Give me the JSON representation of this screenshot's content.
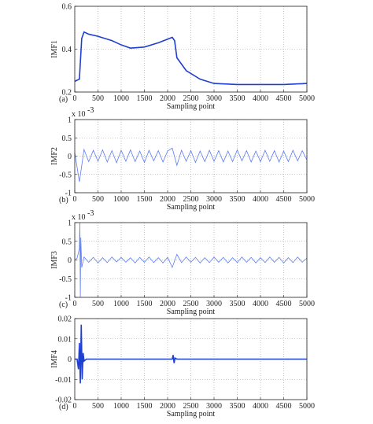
{
  "chart_data": [
    {
      "type": "line",
      "label": "(a)",
      "ylabel": "IMF1",
      "xlabel": "Sampling point",
      "color": "#1f3fd0",
      "grid": true,
      "x": [
        0,
        100,
        150,
        200,
        300,
        500,
        800,
        1000,
        1200,
        1500,
        1800,
        2100,
        2150,
        2200,
        2400,
        2700,
        3000,
        3500,
        4000,
        4500,
        5000
      ],
      "values": [
        0.25,
        0.26,
        0.45,
        0.48,
        0.47,
        0.46,
        0.44,
        0.42,
        0.405,
        0.41,
        0.43,
        0.455,
        0.44,
        0.36,
        0.3,
        0.26,
        0.24,
        0.235,
        0.235,
        0.235,
        0.24
      ],
      "xlim": [
        0,
        5000
      ],
      "xticks": [
        0,
        500,
        1000,
        1500,
        2000,
        2500,
        3000,
        3500,
        4000,
        4500,
        5000
      ],
      "ylim": [
        0.2,
        0.6
      ],
      "yticks": [
        0.2,
        0.4,
        0.6
      ]
    },
    {
      "type": "line",
      "label": "(b)",
      "ylabel": "IMF2",
      "xlabel": "Sampling point",
      "color": "#5b7cf5",
      "grid": true,
      "multiplier": {
        "base": "x 10",
        "exponent": "-3"
      },
      "x": [
        0,
        100,
        200,
        300,
        400,
        500,
        600,
        700,
        800,
        900,
        1000,
        1100,
        1200,
        1300,
        1400,
        1500,
        1600,
        1700,
        1800,
        1900,
        2000,
        2100,
        2200,
        2300,
        2400,
        2500,
        2600,
        2700,
        2800,
        2900,
        3000,
        3100,
        3200,
        3300,
        3400,
        3500,
        3600,
        3700,
        3800,
        3900,
        4000,
        4100,
        4200,
        4300,
        4400,
        4500,
        4600,
        4700,
        4800,
        4900,
        5000
      ],
      "values": [
        0.1,
        -0.7,
        0.18,
        -0.15,
        0.16,
        -0.14,
        0.17,
        -0.16,
        0.15,
        -0.18,
        0.16,
        -0.14,
        0.17,
        -0.15,
        0.14,
        -0.17,
        0.16,
        -0.13,
        0.15,
        -0.16,
        0.14,
        0.22,
        -0.25,
        0.16,
        -0.14,
        0.15,
        -0.17,
        0.14,
        -0.15,
        0.16,
        -0.14,
        0.15,
        -0.16,
        0.14,
        -0.15,
        0.17,
        -0.13,
        0.15,
        -0.16,
        0.14,
        -0.15,
        0.16,
        -0.14,
        0.15,
        -0.16,
        0.14,
        -0.15,
        0.16,
        -0.13,
        0.15,
        -0.1
      ],
      "xlim": [
        0,
        5000
      ],
      "xticks": [
        0,
        500,
        1000,
        1500,
        2000,
        2500,
        3000,
        3500,
        4000,
        4500,
        5000
      ],
      "ylim": [
        -1,
        1
      ],
      "yticks": [
        -1,
        -0.5,
        0,
        0.5,
        1
      ]
    },
    {
      "type": "line",
      "label": "(c)",
      "ylabel": "IMF3",
      "xlabel": "Sampling point",
      "color": "#5b7cf5",
      "grid": true,
      "multiplier": {
        "base": "x 10",
        "exponent": "-3"
      },
      "x": [
        0,
        50,
        100,
        110,
        120,
        130,
        150,
        200,
        300,
        400,
        500,
        600,
        700,
        800,
        900,
        1000,
        1100,
        1200,
        1300,
        1400,
        1500,
        1600,
        1700,
        1800,
        1900,
        2000,
        2100,
        2200,
        2300,
        2400,
        2500,
        2600,
        2700,
        2800,
        2900,
        3000,
        3100,
        3200,
        3300,
        3400,
        3500,
        3600,
        3700,
        3800,
        3900,
        4000,
        4100,
        4200,
        4300,
        4400,
        4500,
        4600,
        4700,
        4800,
        4900,
        5000
      ],
      "values": [
        0,
        0.05,
        0.3,
        1,
        -1,
        0.6,
        -0.2,
        0.08,
        -0.06,
        0.07,
        -0.08,
        0.06,
        -0.07,
        0.08,
        -0.05,
        0.07,
        -0.06,
        0.06,
        -0.08,
        0.07,
        -0.06,
        0.08,
        -0.07,
        0.06,
        -0.08,
        0.07,
        -0.2,
        0.15,
        -0.07,
        0.08,
        -0.06,
        0.07,
        -0.08,
        0.06,
        -0.07,
        0.08,
        -0.06,
        0.07,
        -0.08,
        0.06,
        -0.07,
        0.08,
        -0.06,
        0.07,
        -0.08,
        0.06,
        -0.07,
        0.08,
        -0.06,
        0.07,
        -0.08,
        0.06,
        -0.07,
        0.08,
        -0.06,
        0.05
      ],
      "xlim": [
        0,
        5000
      ],
      "xticks": [
        0,
        500,
        1000,
        1500,
        2000,
        2500,
        3000,
        3500,
        4000,
        4500,
        5000
      ],
      "ylim": [
        -1,
        1
      ],
      "yticks": [
        -1,
        -0.5,
        0,
        0.5,
        1
      ]
    },
    {
      "type": "line",
      "label": "(d)",
      "ylabel": "IMF4",
      "xlabel": "Sampling point",
      "color": "#1f3fd0",
      "grid": true,
      "x": [
        0,
        50,
        80,
        100,
        120,
        140,
        160,
        180,
        200,
        250,
        300,
        500,
        1000,
        2000,
        2100,
        2120,
        2140,
        2160,
        2200,
        3000,
        4000,
        5000
      ],
      "values": [
        0,
        0,
        -0.005,
        0.008,
        -0.012,
        0.017,
        -0.01,
        0.003,
        -0.001,
        0,
        0,
        0,
        0,
        0,
        0,
        0.002,
        -0.002,
        0.0005,
        0,
        0,
        0,
        0
      ],
      "xlim": [
        0,
        5000
      ],
      "xticks": [
        0,
        500,
        1000,
        1500,
        2000,
        2500,
        3000,
        3500,
        4000,
        4500,
        5000
      ],
      "ylim": [
        -0.02,
        0.02
      ],
      "yticks": [
        -0.02,
        -0.01,
        0,
        0.01,
        0.02
      ]
    }
  ]
}
